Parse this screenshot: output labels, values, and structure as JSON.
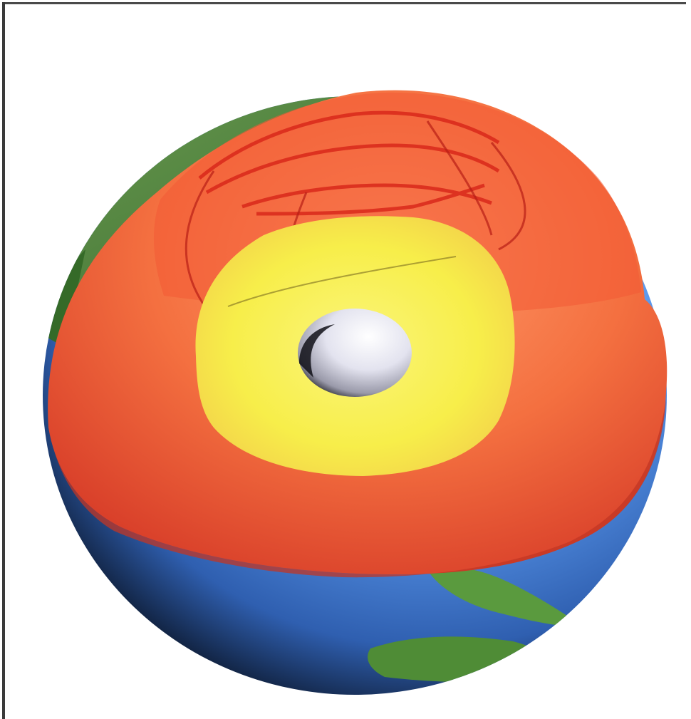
{
  "image": {
    "subject": "earth-cutaway",
    "colors": {
      "background": "#ffffff",
      "frame_border": "#3f3f3f",
      "ocean": "#4f8fe0",
      "land": "#3f7a2e",
      "mantle": "#f06a3a",
      "outer_core": "#f8ef4a",
      "inner_core": "#e8e8f2"
    }
  }
}
